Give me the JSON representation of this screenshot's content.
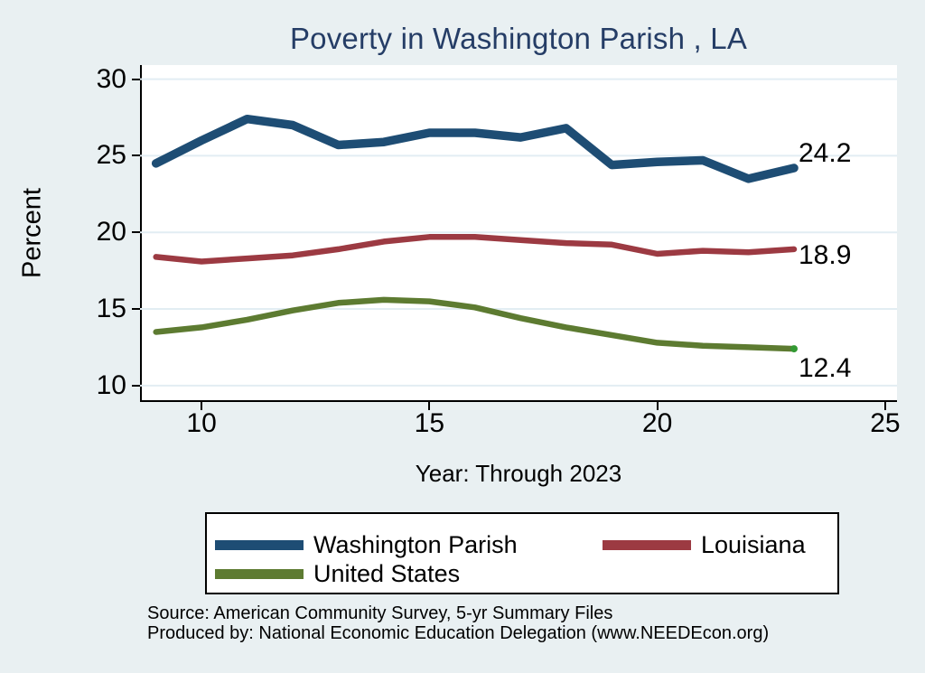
{
  "title": "Poverty in Washington Parish , LA",
  "axes": {
    "y_label": "Percent",
    "x_label": "Year: Through 2023"
  },
  "end_labels": {
    "washington_parish": "24.2",
    "louisiana": "18.9",
    "united_states": "12.4"
  },
  "legend": {
    "items": [
      {
        "label": "Washington Parish"
      },
      {
        "label": "Louisiana"
      },
      {
        "label": "United States"
      }
    ]
  },
  "source": {
    "line1": "Source: American Community Survey, 5-yr Summary Files",
    "line2": "Produced by: National Economic Education Delegation (www.NEEDEcon.org)"
  },
  "colors": {
    "background": "#e9f0f2",
    "plot_background": "#ffffff",
    "gridline": "#e2edf3",
    "axis": "#000000",
    "title": "#253d66",
    "washington_parish": "#1e4d74",
    "louisiana": "#9c3a42",
    "united_states": "#5d7b31",
    "end_marker": "#339933"
  },
  "chart_data": {
    "type": "line",
    "title": "Poverty in Washington Parish , LA",
    "xlabel": "Year: Through 2023",
    "ylabel": "Percent",
    "x": [
      9,
      10,
      11,
      12,
      13,
      14,
      15,
      16,
      17,
      18,
      19,
      20,
      21,
      22,
      23
    ],
    "series": [
      {
        "name": "Washington Parish",
        "color": "#1e4d74",
        "width": 9.5,
        "values": [
          24.5,
          26.0,
          27.4,
          27.0,
          25.7,
          25.9,
          26.5,
          26.5,
          26.2,
          26.8,
          24.4,
          24.6,
          24.7,
          23.5,
          24.2
        ]
      },
      {
        "name": "Louisiana",
        "color": "#9c3a42",
        "width": 6.5,
        "values": [
          18.4,
          18.1,
          18.3,
          18.5,
          18.9,
          19.4,
          19.7,
          19.7,
          19.5,
          19.3,
          19.2,
          18.6,
          18.8,
          18.7,
          18.9
        ]
      },
      {
        "name": "United States",
        "color": "#5d7b31",
        "width": 6.5,
        "end_marker": true,
        "marker_color": "#339933",
        "values": [
          13.5,
          13.8,
          14.3,
          14.9,
          15.4,
          15.6,
          15.5,
          15.1,
          14.4,
          13.8,
          13.3,
          12.8,
          12.6,
          12.5,
          12.4
        ]
      }
    ],
    "end_value_labels": [
      24.2,
      18.9,
      12.4
    ],
    "xticks": [
      10,
      15,
      20,
      25
    ],
    "yticks": [
      10,
      15,
      20,
      25,
      30
    ],
    "xlim": [
      8.65,
      25.26
    ],
    "ylim": [
      8.93,
      30.92
    ],
    "grid": "horizontal",
    "legend_position": "bottom"
  }
}
